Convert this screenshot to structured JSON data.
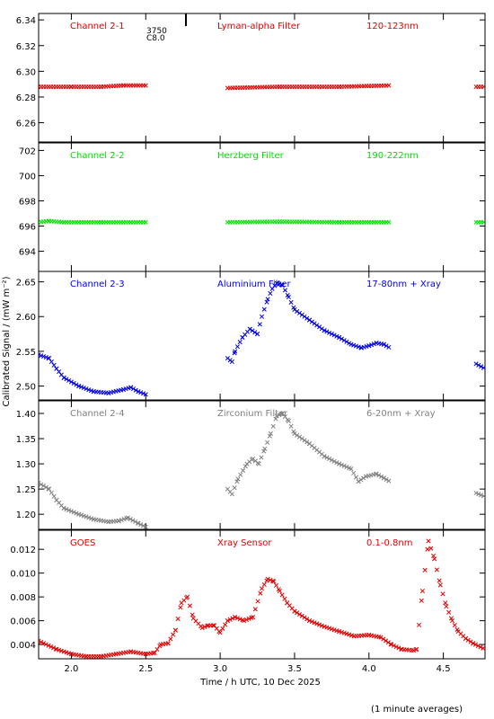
{
  "footer_note": "(1 minute averages)",
  "x_axis": {
    "label": "Time / h UTC, 10 Dec 2025",
    "range": [
      1.78,
      4.78
    ],
    "ticks": [
      2.0,
      2.5,
      3.0,
      3.5,
      4.0,
      4.5
    ],
    "tick_labels": [
      "2.0",
      "2.5",
      "3.0",
      "3.5",
      "4.0",
      "4.5"
    ]
  },
  "y_axis_shared_label": "Calibrated Signal / (mW m⁻²)",
  "flare_marker": {
    "x": 2.77,
    "label_line1": "3750",
    "label_line2": "C8.0"
  },
  "chart_data": [
    {
      "type": "scatter",
      "id": "panel-1",
      "title_left": "Channel 2-1",
      "title_mid": "Lyman-alpha Filter",
      "title_right": "120-123nm",
      "color": "#e00000",
      "ylim": [
        6.245,
        6.345
      ],
      "yticks": [
        6.26,
        6.28,
        6.3,
        6.32,
        6.34
      ],
      "ytick_labels": [
        "6.26",
        "6.28",
        "6.30",
        "6.32",
        "6.34"
      ],
      "segments": [
        {
          "x": [
            1.78,
            2.0,
            2.2,
            2.35,
            2.5
          ],
          "y": [
            6.288,
            6.288,
            6.288,
            6.289,
            6.289
          ]
        },
        {
          "x": [
            3.05,
            3.4,
            3.8,
            4.14
          ],
          "y": [
            6.287,
            6.288,
            6.288,
            6.289
          ]
        },
        {
          "x": [
            4.72,
            4.78
          ],
          "y": [
            6.288,
            6.288
          ]
        }
      ]
    },
    {
      "type": "scatter",
      "id": "panel-2",
      "title_left": "Channel 2-2",
      "title_mid": "Herzberg Filter",
      "title_right": "190-222nm",
      "color": "#00e000",
      "ylim": [
        692.4,
        702.6
      ],
      "yticks": [
        694,
        696,
        698,
        700,
        702
      ],
      "ytick_labels": [
        "694",
        "696",
        "698",
        "700",
        "702"
      ],
      "segments": [
        {
          "x": [
            1.78,
            1.85,
            1.95,
            2.2,
            2.5
          ],
          "y": [
            696.3,
            696.4,
            696.3,
            696.3,
            696.3
          ]
        },
        {
          "x": [
            3.05,
            3.4,
            3.8,
            4.14
          ],
          "y": [
            696.3,
            696.35,
            696.3,
            696.3
          ]
        },
        {
          "x": [
            4.72,
            4.78
          ],
          "y": [
            696.3,
            696.3
          ]
        }
      ]
    },
    {
      "type": "scatter",
      "id": "panel-3",
      "title_left": "Channel 2-3",
      "title_mid": "Aluminium Filter",
      "title_right": "17-80nm + Xray",
      "color": "#0000e0",
      "ylim": [
        2.48,
        2.665
      ],
      "yticks": [
        2.5,
        2.55,
        2.6,
        2.65
      ],
      "ytick_labels": [
        "2.50",
        "2.55",
        "2.60",
        "2.65"
      ],
      "segments": [
        {
          "x": [
            1.78,
            1.85,
            1.9,
            1.95,
            2.05,
            2.15,
            2.25,
            2.35,
            2.4,
            2.45,
            2.5
          ],
          "y": [
            2.545,
            2.54,
            2.525,
            2.512,
            2.5,
            2.492,
            2.49,
            2.495,
            2.498,
            2.492,
            2.488
          ]
        },
        {
          "x": [
            3.05,
            3.08,
            3.1,
            3.15,
            3.2,
            3.25,
            3.28,
            3.32,
            3.35,
            3.38,
            3.42,
            3.46,
            3.5,
            3.6,
            3.7,
            3.8,
            3.88,
            3.95,
            4.0,
            4.05,
            4.1,
            4.14
          ],
          "y": [
            2.54,
            2.535,
            2.55,
            2.57,
            2.582,
            2.575,
            2.6,
            2.625,
            2.64,
            2.648,
            2.645,
            2.628,
            2.61,
            2.595,
            2.58,
            2.57,
            2.56,
            2.555,
            2.558,
            2.562,
            2.56,
            2.555
          ]
        },
        {
          "x": [
            4.72,
            4.78
          ],
          "y": [
            2.532,
            2.525
          ]
        }
      ]
    },
    {
      "type": "scatter",
      "id": "panel-4",
      "title_left": "Channel 2-4",
      "title_mid": "Zirconium Filter",
      "title_right": "6-20nm + Xray",
      "color": "#808080",
      "ylim": [
        1.17,
        1.425
      ],
      "yticks": [
        1.2,
        1.25,
        1.3,
        1.35,
        1.4
      ],
      "ytick_labels": [
        "1.20",
        "1.25",
        "1.30",
        "1.35",
        "1.40"
      ],
      "segments": [
        {
          "x": [
            1.78,
            1.85,
            1.9,
            1.95,
            2.05,
            2.15,
            2.25,
            2.32,
            2.38,
            2.45,
            2.5
          ],
          "y": [
            1.262,
            1.25,
            1.228,
            1.212,
            1.2,
            1.19,
            1.185,
            1.187,
            1.193,
            1.182,
            1.175
          ]
        },
        {
          "x": [
            3.05,
            3.08,
            3.12,
            3.18,
            3.22,
            3.26,
            3.3,
            3.34,
            3.38,
            3.42,
            3.46,
            3.5,
            3.6,
            3.7,
            3.8,
            3.88,
            3.93,
            3.98,
            4.05,
            4.1,
            4.14
          ],
          "y": [
            1.25,
            1.24,
            1.27,
            1.3,
            1.31,
            1.3,
            1.33,
            1.36,
            1.395,
            1.4,
            1.385,
            1.36,
            1.34,
            1.315,
            1.3,
            1.29,
            1.265,
            1.275,
            1.28,
            1.272,
            1.265
          ]
        },
        {
          "x": [
            4.72,
            4.78
          ],
          "y": [
            1.242,
            1.235
          ]
        }
      ]
    },
    {
      "type": "scatter",
      "id": "panel-5",
      "title_left": "GOES",
      "title_mid": "Xray Sensor",
      "title_right": "0.1-0.8nm",
      "color": "#e00000",
      "ylim": [
        0.0028,
        0.0136
      ],
      "yticks": [
        0.004,
        0.006,
        0.008,
        0.01,
        0.012
      ],
      "ytick_labels": [
        "0.004",
        "0.006",
        "0.008",
        "0.010",
        "0.012"
      ],
      "segments": [
        {
          "x": [
            1.78,
            1.9,
            2.0,
            2.1,
            2.2,
            2.3,
            2.4,
            2.5,
            2.56,
            2.6,
            2.65,
            2.7,
            2.74,
            2.78,
            2.82,
            2.88,
            2.92,
            2.96,
            3.0,
            3.05,
            3.1,
            3.16,
            3.22,
            3.28,
            3.32,
            3.36,
            3.4,
            3.45,
            3.5,
            3.6,
            3.7,
            3.8,
            3.9,
            4.0,
            4.08,
            4.15,
            4.22,
            4.3,
            4.32,
            4.36,
            4.4,
            4.44,
            4.48,
            4.52,
            4.56,
            4.6,
            4.65,
            4.7,
            4.78
          ],
          "y": [
            0.0043,
            0.0036,
            0.0032,
            0.003,
            0.003,
            0.0032,
            0.0034,
            0.0032,
            0.0033,
            0.004,
            0.0041,
            0.0052,
            0.0075,
            0.008,
            0.0062,
            0.0054,
            0.0056,
            0.0056,
            0.005,
            0.006,
            0.0063,
            0.006,
            0.0063,
            0.0087,
            0.0095,
            0.0093,
            0.0085,
            0.0075,
            0.0068,
            0.006,
            0.0055,
            0.0051,
            0.0047,
            0.0048,
            0.0046,
            0.004,
            0.0036,
            0.0035,
            0.0036,
            0.0085,
            0.0127,
            0.0112,
            0.009,
            0.0072,
            0.006,
            0.0051,
            0.0045,
            0.0041,
            0.0036
          ]
        }
      ]
    }
  ]
}
